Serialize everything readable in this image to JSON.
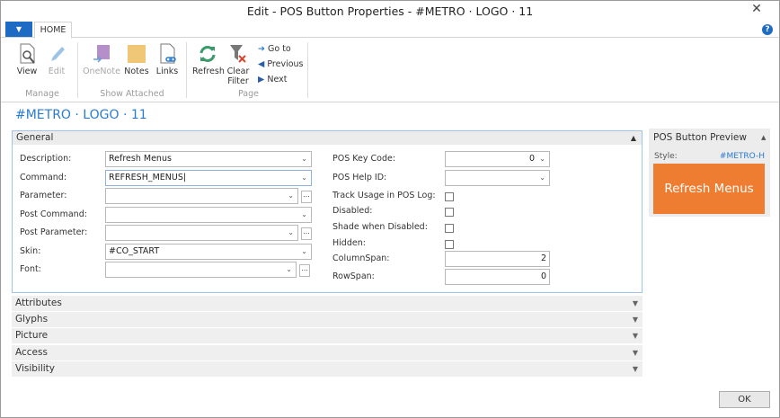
{
  "window": {
    "title": "Edit - POS Button Properties - #METRO · LOGO · 11",
    "close_icon": "close-icon"
  },
  "ribbon": {
    "tab": "HOME",
    "manage": {
      "label": "Manage",
      "view": "View",
      "edit": "Edit"
    },
    "show_attached": {
      "label": "Show Attached",
      "onenote": "OneNote",
      "notes": "Notes",
      "links": "Links"
    },
    "page": {
      "label": "Page",
      "refresh": "Refresh",
      "clear_filter_1": "Clear",
      "clear_filter_2": "Filter",
      "go_to": "Go to",
      "previous": "Previous",
      "next": "Next"
    }
  },
  "page_title": "#METRO · LOGO · 11",
  "general": {
    "title": "General",
    "description": {
      "label": "Description:",
      "value": "Refresh Menus"
    },
    "command": {
      "label": "Command:",
      "value": "REFRESH_MENUS"
    },
    "parameter": {
      "label": "Parameter:",
      "value": ""
    },
    "post_command": {
      "label": "Post Command:",
      "value": ""
    },
    "post_parameter": {
      "label": "Post Parameter:",
      "value": ""
    },
    "skin": {
      "label": "Skin:",
      "value": "#CO_START"
    },
    "font": {
      "label": "Font:",
      "value": ""
    },
    "pos_key_code": {
      "label": "POS Key Code:",
      "value": "0"
    },
    "pos_help_id": {
      "label": "POS Help ID:",
      "value": ""
    },
    "track_usage": {
      "label": "Track Usage in POS Log:",
      "checked": false
    },
    "disabled": {
      "label": "Disabled:",
      "checked": false
    },
    "shade_when_disabled": {
      "label": "Shade when Disabled:",
      "checked": false
    },
    "hidden": {
      "label": "Hidden:",
      "checked": false
    },
    "column_span": {
      "label": "ColumnSpan:",
      "value": "2"
    },
    "row_span": {
      "label": "RowSpan:",
      "value": "0"
    }
  },
  "sections": [
    "Attributes",
    "Glyphs",
    "Picture",
    "Access",
    "Visibility"
  ],
  "preview": {
    "title": "POS Button Preview",
    "style_label": "Style:",
    "style_value": "#METRO-H",
    "button_text": "Refresh Menus",
    "button_color": "#ee7d31"
  },
  "ok": "OK"
}
